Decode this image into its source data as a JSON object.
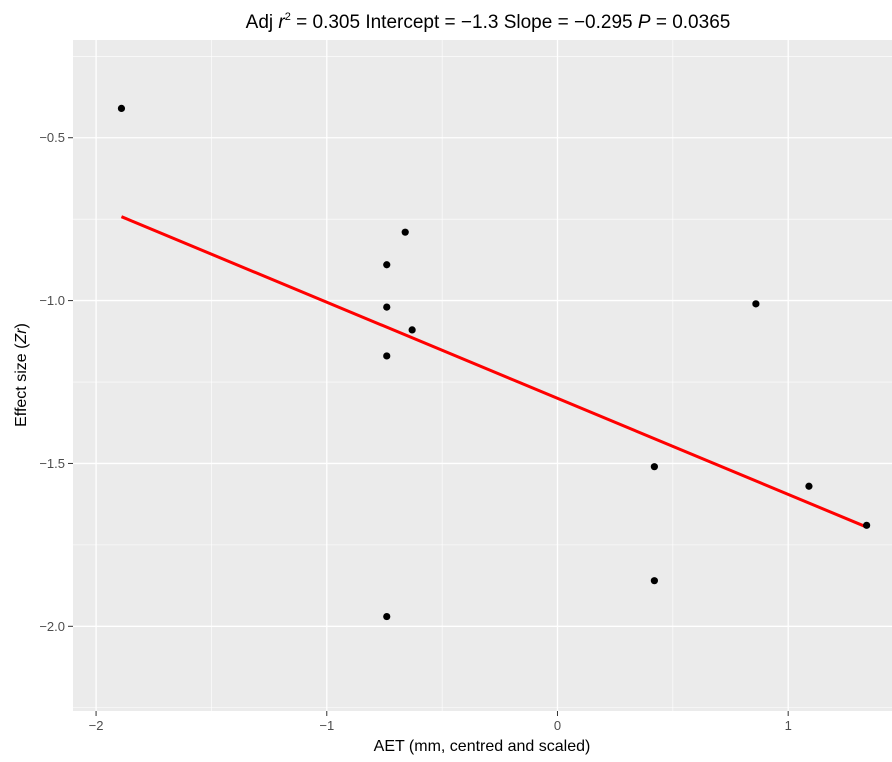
{
  "chart_data": {
    "type": "scatter",
    "title_parts": {
      "adj": "Adj ",
      "r": "r",
      "sup": "2",
      "r2_text": "  =  0.305 Intercept = −1.3  Slope = −0.295  ",
      "p": "P",
      "p_text": " = 0.0365"
    },
    "xlabel": "AET (mm, centred and scaled)",
    "ylabel_parts": {
      "pre": "Effect size (",
      "zr": "Zr",
      "post": ")"
    },
    "xlim": [
      -2.1,
      1.45
    ],
    "ylim": [
      -2.26,
      -0.2
    ],
    "x_ticks": [
      {
        "value": -2,
        "label": "−2"
      },
      {
        "value": -1,
        "label": "−1"
      },
      {
        "value": 0,
        "label": "0"
      },
      {
        "value": 1,
        "label": "1"
      }
    ],
    "y_ticks": [
      {
        "value": -0.5,
        "label": "−0.5"
      },
      {
        "value": -1.0,
        "label": "−1.0"
      },
      {
        "value": -1.5,
        "label": "−1.5"
      },
      {
        "value": -2.0,
        "label": "−2.0"
      }
    ],
    "grid": true,
    "points": [
      {
        "x": -1.89,
        "y": -0.41
      },
      {
        "x": -0.66,
        "y": -0.79
      },
      {
        "x": -0.74,
        "y": -0.89
      },
      {
        "x": -0.74,
        "y": -1.02
      },
      {
        "x": -0.63,
        "y": -1.09
      },
      {
        "x": -0.74,
        "y": -1.17
      },
      {
        "x": 0.86,
        "y": -1.01
      },
      {
        "x": 0.42,
        "y": -1.51
      },
      {
        "x": 1.09,
        "y": -1.57
      },
      {
        "x": 1.34,
        "y": -1.69
      },
      {
        "x": 0.42,
        "y": -1.86
      },
      {
        "x": -0.74,
        "y": -1.97
      }
    ],
    "fit_line": {
      "x": [
        -1.89,
        1.34
      ],
      "intercept": -1.3,
      "slope": -0.295
    },
    "colors": {
      "panel": "#ebebeb",
      "grid_major": "#ffffff",
      "points": "#000000",
      "fit_line": "#ff0000",
      "tick_label": "#4d4d4d"
    }
  }
}
